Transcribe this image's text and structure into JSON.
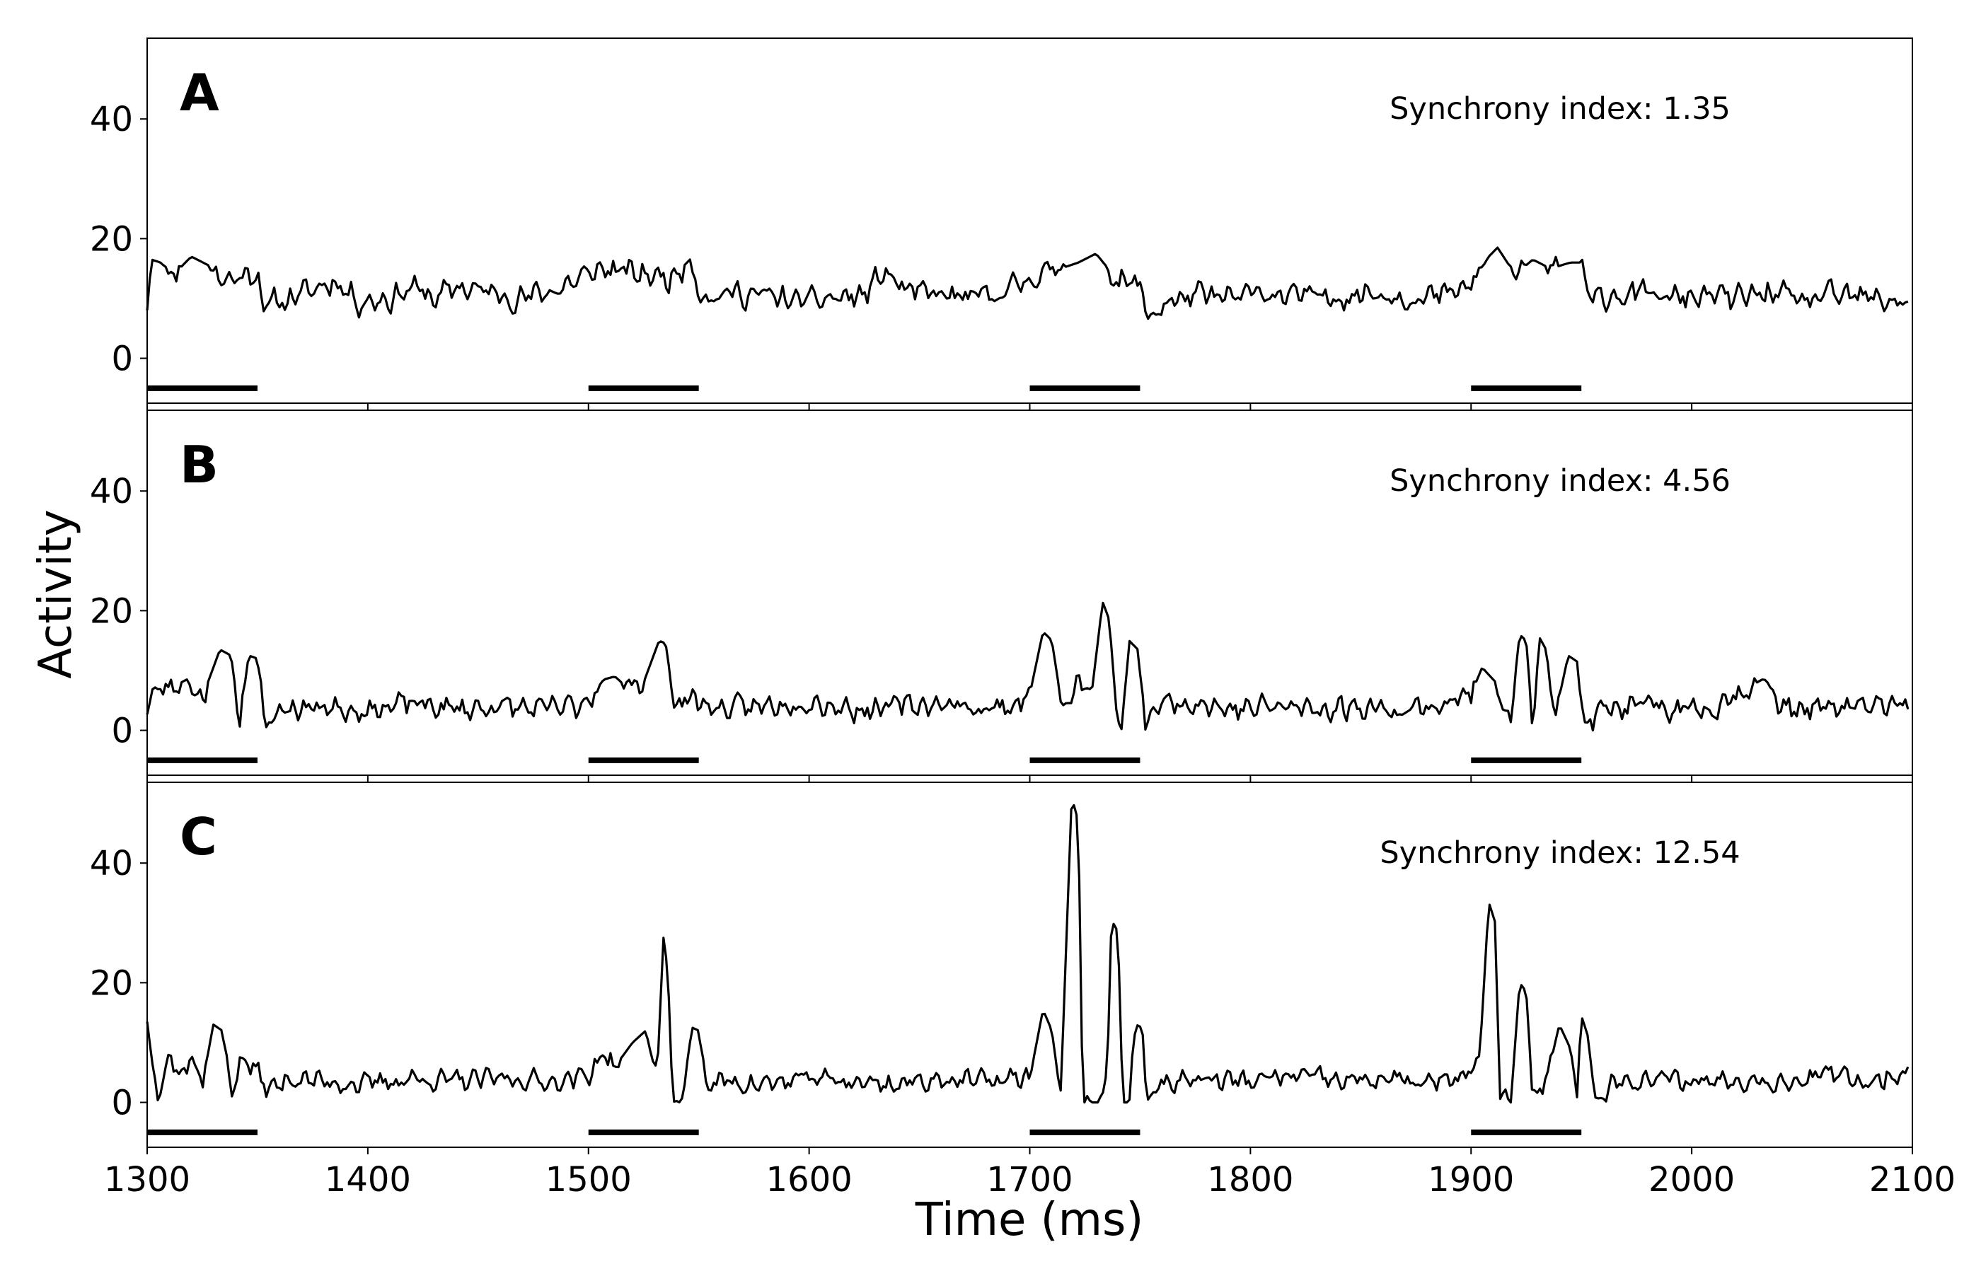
{
  "chart_data": {
    "type": "line",
    "xlabel": "Time (ms)",
    "ylabel": "Activity",
    "xlim": [
      1300,
      2100
    ],
    "ylim": [
      -7.5,
      53.5
    ],
    "x_ticks": [
      1300,
      1400,
      1500,
      1600,
      1700,
      1800,
      1900,
      2000,
      2100
    ],
    "y_ticks": [
      0,
      20,
      40
    ],
    "grid": false,
    "line_color": "#000000",
    "stimulus_bars": {
      "y": -5,
      "intervals": [
        [
          1300,
          1350
        ],
        [
          1500,
          1550
        ],
        [
          1700,
          1750
        ],
        [
          1900,
          1950
        ]
      ]
    },
    "panels": [
      {
        "label": "A",
        "annotation": "Synchrony index: 1.35",
        "baseline": 10.5,
        "noise": 1.6,
        "seed": 11,
        "series_points": [
          [
            1300,
            9
          ],
          [
            1302,
            16.5
          ],
          [
            1306,
            16
          ],
          [
            1312,
            14
          ],
          [
            1320,
            17
          ],
          [
            1328,
            15.5
          ],
          [
            1336,
            13
          ],
          [
            1345,
            14
          ],
          [
            1350,
            14.5
          ],
          [
            1353,
            8.5
          ],
          [
            1360,
            9.5
          ],
          [
            1372,
            11
          ],
          [
            1385,
            13
          ],
          [
            1396,
            9.5
          ],
          [
            1410,
            10
          ],
          [
            1420,
            12
          ],
          [
            1430,
            10
          ],
          [
            1442,
            12
          ],
          [
            1455,
            11
          ],
          [
            1470,
            10
          ],
          [
            1485,
            11.5
          ],
          [
            1500,
            14
          ],
          [
            1506,
            15
          ],
          [
            1515,
            14.5
          ],
          [
            1525,
            14
          ],
          [
            1538,
            13.5
          ],
          [
            1546,
            16.5
          ],
          [
            1551,
            11
          ],
          [
            1556,
            10
          ],
          [
            1565,
            11
          ],
          [
            1580,
            10.5
          ],
          [
            1595,
            9.5
          ],
          [
            1610,
            10
          ],
          [
            1625,
            10.5
          ],
          [
            1634,
            14.5
          ],
          [
            1645,
            11
          ],
          [
            1660,
            10.5
          ],
          [
            1675,
            10
          ],
          [
            1688,
            11
          ],
          [
            1700,
            13.5
          ],
          [
            1710,
            14.5
          ],
          [
            1722,
            16
          ],
          [
            1730,
            17.5
          ],
          [
            1740,
            13
          ],
          [
            1750,
            12
          ],
          [
            1754,
            6.5
          ],
          [
            1760,
            9
          ],
          [
            1775,
            10.5
          ],
          [
            1790,
            10
          ],
          [
            1805,
            11
          ],
          [
            1820,
            10.5
          ],
          [
            1835,
            10
          ],
          [
            1850,
            11
          ],
          [
            1865,
            10.5
          ],
          [
            1880,
            10
          ],
          [
            1893,
            11
          ],
          [
            1900,
            12
          ],
          [
            1908,
            17
          ],
          [
            1912,
            18.5
          ],
          [
            1920,
            14
          ],
          [
            1928,
            16.5
          ],
          [
            1936,
            15
          ],
          [
            1945,
            16
          ],
          [
            1950,
            16
          ],
          [
            1953,
            9.5
          ],
          [
            1962,
            10.5
          ],
          [
            1975,
            11
          ],
          [
            1990,
            10
          ],
          [
            2005,
            10.5
          ],
          [
            2020,
            10
          ],
          [
            2035,
            11
          ],
          [
            2050,
            9.5
          ],
          [
            2065,
            10.5
          ],
          [
            2080,
            10
          ],
          [
            2098,
            9.5
          ]
        ]
      },
      {
        "label": "B",
        "annotation": "Synchrony index: 4.56",
        "baseline": 3.5,
        "noise": 1.5,
        "seed": 23,
        "series_points": [
          [
            1300,
            4
          ],
          [
            1303,
            6.5
          ],
          [
            1310,
            7
          ],
          [
            1318,
            8.5
          ],
          [
            1325,
            5.5
          ],
          [
            1333,
            13.5
          ],
          [
            1338,
            12.5
          ],
          [
            1342,
            1.5
          ],
          [
            1346,
            12.5
          ],
          [
            1350,
            12
          ],
          [
            1353,
            0.5
          ],
          [
            1360,
            3.5
          ],
          [
            1380,
            4
          ],
          [
            1400,
            3.5
          ],
          [
            1420,
            4.5
          ],
          [
            1440,
            3.5
          ],
          [
            1460,
            4
          ],
          [
            1480,
            3.5
          ],
          [
            1495,
            4
          ],
          [
            1500,
            5.5
          ],
          [
            1507,
            8.5
          ],
          [
            1512,
            9
          ],
          [
            1518,
            7
          ],
          [
            1525,
            8
          ],
          [
            1532,
            15
          ],
          [
            1535,
            14.5
          ],
          [
            1539,
            4
          ],
          [
            1545,
            5.5
          ],
          [
            1552,
            4.5
          ],
          [
            1560,
            3.5
          ],
          [
            1580,
            4
          ],
          [
            1600,
            5
          ],
          [
            1620,
            3.5
          ],
          [
            1640,
            4
          ],
          [
            1660,
            4.5
          ],
          [
            1680,
            3.5
          ],
          [
            1695,
            4.5
          ],
          [
            1700,
            6
          ],
          [
            1706,
            16.5
          ],
          [
            1710,
            15
          ],
          [
            1715,
            3
          ],
          [
            1722,
            8
          ],
          [
            1728,
            6
          ],
          [
            1733,
            21.5
          ],
          [
            1736,
            18.5
          ],
          [
            1740,
            0
          ],
          [
            1742,
            0
          ],
          [
            1745,
            15
          ],
          [
            1749,
            13.5
          ],
          [
            1752,
            1.5
          ],
          [
            1760,
            4.5
          ],
          [
            1775,
            5
          ],
          [
            1790,
            3.5
          ],
          [
            1810,
            4
          ],
          [
            1830,
            3.5
          ],
          [
            1850,
            4
          ],
          [
            1870,
            3.5
          ],
          [
            1890,
            4.5
          ],
          [
            1900,
            6
          ],
          [
            1905,
            10.5
          ],
          [
            1910,
            8.5
          ],
          [
            1918,
            2.5
          ],
          [
            1922,
            16
          ],
          [
            1925,
            15
          ],
          [
            1928,
            0.5
          ],
          [
            1931,
            15.5
          ],
          [
            1934,
            13.5
          ],
          [
            1938,
            2
          ],
          [
            1944,
            12.5
          ],
          [
            1948,
            11.5
          ],
          [
            1951,
            0.5
          ],
          [
            1960,
            3.5
          ],
          [
            1975,
            4
          ],
          [
            1990,
            3.5
          ],
          [
            2010,
            4
          ],
          [
            2032,
            8.5
          ],
          [
            2040,
            4
          ],
          [
            2060,
            3.5
          ],
          [
            2080,
            4
          ],
          [
            2097,
            4.5
          ],
          [
            2099,
            0
          ]
        ]
      },
      {
        "label": "C",
        "annotation": "Synchrony index: 12.54",
        "baseline": 3.5,
        "noise": 1.3,
        "seed": 37,
        "series_points": [
          [
            1300,
            13.5
          ],
          [
            1302,
            7.5
          ],
          [
            1305,
            1.5
          ],
          [
            1310,
            8.5
          ],
          [
            1315,
            4
          ],
          [
            1320,
            8
          ],
          [
            1325,
            3
          ],
          [
            1330,
            13
          ],
          [
            1334,
            12
          ],
          [
            1338,
            2
          ],
          [
            1343,
            7.5
          ],
          [
            1350,
            5
          ],
          [
            1355,
            2
          ],
          [
            1365,
            4
          ],
          [
            1380,
            3.5
          ],
          [
            1400,
            3
          ],
          [
            1420,
            4
          ],
          [
            1440,
            3.5
          ],
          [
            1460,
            4
          ],
          [
            1480,
            3.5
          ],
          [
            1495,
            4
          ],
          [
            1500,
            4.5
          ],
          [
            1506,
            8
          ],
          [
            1512,
            6
          ],
          [
            1520,
            10
          ],
          [
            1526,
            12
          ],
          [
            1531,
            3.5
          ],
          [
            1534,
            27.5
          ],
          [
            1536,
            22
          ],
          [
            1538,
            0
          ],
          [
            1542,
            0
          ],
          [
            1547,
            12.5
          ],
          [
            1550,
            12
          ],
          [
            1553,
            3
          ],
          [
            1562,
            3.5
          ],
          [
            1580,
            3
          ],
          [
            1600,
            4
          ],
          [
            1620,
            3.5
          ],
          [
            1640,
            3
          ],
          [
            1660,
            4
          ],
          [
            1680,
            3.5
          ],
          [
            1695,
            4
          ],
          [
            1700,
            4
          ],
          [
            1706,
            15.5
          ],
          [
            1710,
            12
          ],
          [
            1714,
            1
          ],
          [
            1719,
            51
          ],
          [
            1722,
            47
          ],
          [
            1724,
            0
          ],
          [
            1728,
            0
          ],
          [
            1733,
            0
          ],
          [
            1735,
            3
          ],
          [
            1737,
            30.5
          ],
          [
            1740,
            28.5
          ],
          [
            1742,
            0
          ],
          [
            1745,
            1
          ],
          [
            1748,
            13
          ],
          [
            1751,
            12.5
          ],
          [
            1753,
            0.5
          ],
          [
            1762,
            3.5
          ],
          [
            1780,
            4
          ],
          [
            1800,
            3.5
          ],
          [
            1820,
            4.5
          ],
          [
            1840,
            3.5
          ],
          [
            1860,
            4
          ],
          [
            1880,
            3
          ],
          [
            1896,
            4
          ],
          [
            1900,
            5
          ],
          [
            1904,
            8
          ],
          [
            1908,
            33.5
          ],
          [
            1911,
            30
          ],
          [
            1913,
            0
          ],
          [
            1918,
            0
          ],
          [
            1922,
            20
          ],
          [
            1925,
            18.5
          ],
          [
            1928,
            0.5
          ],
          [
            1935,
            5
          ],
          [
            1940,
            13
          ],
          [
            1945,
            9
          ],
          [
            1948,
            2
          ],
          [
            1950,
            14.5
          ],
          [
            1953,
            11
          ],
          [
            1956,
            0.5
          ],
          [
            1965,
            3.5
          ],
          [
            1980,
            4
          ],
          [
            2000,
            3.5
          ],
          [
            2020,
            4
          ],
          [
            2040,
            3.5
          ],
          [
            2060,
            4.5
          ],
          [
            2080,
            3.5
          ],
          [
            2099,
            5.5
          ]
        ]
      }
    ]
  }
}
